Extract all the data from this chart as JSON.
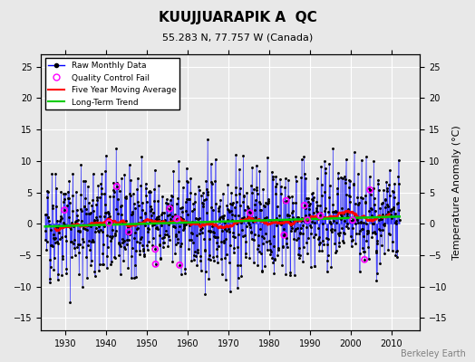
{
  "title": "KUUJJUARAPIK A  QC",
  "subtitle": "55.283 N, 77.757 W (Canada)",
  "xlabel": "",
  "ylabel": "Temperature Anomaly (°C)",
  "watermark": "Berkeley Earth",
  "ylim": [
    -17,
    27
  ],
  "yticks": [
    -15,
    -10,
    -5,
    0,
    5,
    10,
    15,
    20,
    25
  ],
  "xlim": [
    1924,
    2017
  ],
  "xticks": [
    1930,
    1940,
    1950,
    1960,
    1970,
    1980,
    1990,
    2000,
    2010
  ],
  "raw_color": "#0000ff",
  "moving_avg_color": "#ff0000",
  "trend_color": "#00cc00",
  "qc_fail_color": "#ff00ff",
  "background_color": "#e8e8e8",
  "grid_color": "#ffffff",
  "seed": 42,
  "n_years": 87,
  "start_year": 1925
}
